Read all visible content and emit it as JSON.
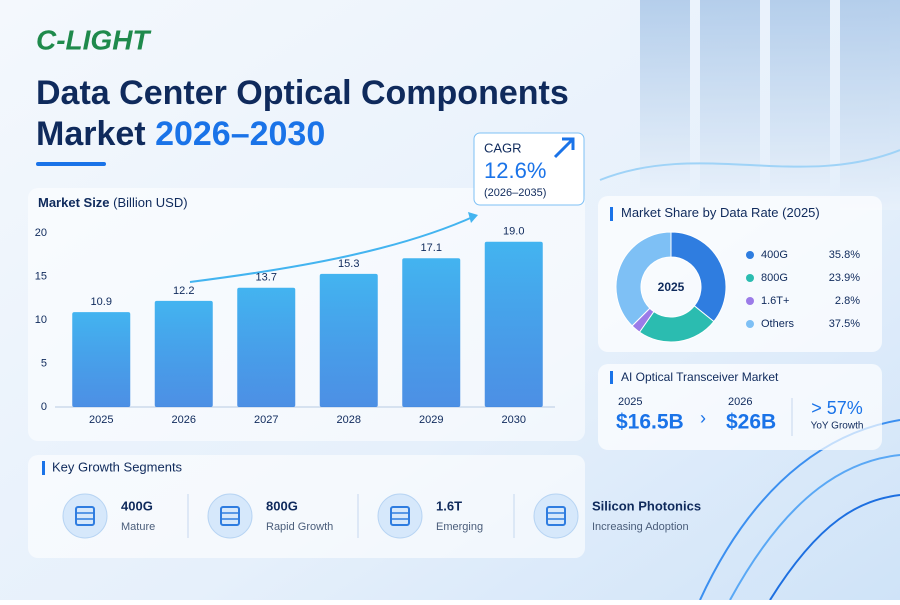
{
  "header": {
    "logo": "C-LIGHT",
    "title_line1": "Data Center Optical Components",
    "title_line2": "Market",
    "title_highlight": "2026–2030"
  },
  "chart_data": [
    {
      "type": "bar",
      "title": "Market Size",
      "subtitle": "(Billion USD)",
      "categories": [
        "2025",
        "2026",
        "2027",
        "2028",
        "2029",
        "2030"
      ],
      "values": [
        10.9,
        12.2,
        13.7,
        15.3,
        17.1,
        19.0
      ],
      "value_labels": [
        "10.9",
        "12.2",
        "13.7",
        "15.3",
        "17.1",
        "19.0"
      ],
      "color": "#3ea6f2",
      "ylim": [
        0,
        20
      ],
      "yticks": [
        0,
        5,
        10,
        15,
        20
      ],
      "grid": false,
      "annotation": {
        "label": "CAGR",
        "value": "12.6%",
        "period": "(2026–2035)"
      }
    },
    {
      "type": "pie",
      "title": "Market Share by Data Rate",
      "subtitle": "(2025)",
      "center_label": "2025",
      "categories": [
        "400G",
        "800G",
        "1.6T+",
        "Others"
      ],
      "values": [
        35.8,
        23.9,
        2.8,
        37.5
      ],
      "value_labels": [
        "35.8%",
        "23.9%",
        "2.8%",
        "37.5%"
      ],
      "colors": [
        "#2f7de0",
        "#2bbcb0",
        "#9b7be8",
        "#7ec0f5"
      ]
    }
  ],
  "ai_market": {
    "title": "AI Optical Transceiver Market",
    "items": [
      {
        "year": "2025",
        "value": "$16.5B"
      },
      {
        "year": "2026",
        "value": "$26B"
      }
    ],
    "growth": "> 57%",
    "growth_label": "YoY Growth"
  },
  "segments": {
    "title": "Key Growth Segments",
    "items": [
      {
        "name": "400G",
        "status": "Mature"
      },
      {
        "name": "800G",
        "status": "Rapid Growth"
      },
      {
        "name": "1.6T",
        "status": "Emerging"
      },
      {
        "name": "Silicon Photonics",
        "status": "Increasing Adoption"
      }
    ]
  }
}
